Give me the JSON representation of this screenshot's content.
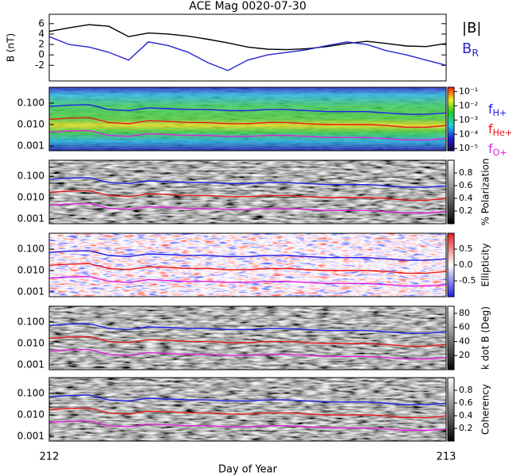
{
  "chart_data": {
    "type": "multi-panel",
    "title": "ACE Mag 0020-07-30",
    "x_label": "Day of Year",
    "xlim": [
      212,
      213
    ],
    "xticks": [
      212,
      213
    ],
    "x": [
      212,
      212.05,
      212.1,
      212.15,
      212.2,
      212.25,
      212.3,
      212.35,
      212.4,
      212.45,
      212.5,
      212.55,
      212.6,
      212.65,
      212.7,
      212.75,
      212.8,
      212.85,
      212.9,
      212.95,
      213
    ],
    "panels": [
      {
        "type": "line",
        "y_label": "B (nT)",
        "ylim": [
          -5,
          7.8
        ],
        "yticks": [
          -2,
          0,
          2,
          4,
          6
        ],
        "series": [
          {
            "name": "|B|",
            "color": "#000000",
            "values": [
              4.5,
              5.2,
              5.8,
              5.5,
              3.5,
              4.2,
              4.0,
              3.6,
              3.0,
              2.3,
              1.5,
              1.1,
              1.0,
              1.2,
              1.6,
              2.2,
              2.6,
              2.2,
              1.7,
              1.6,
              2.2
            ]
          },
          {
            "name": "B",
            "name_sub": "R",
            "color": "#2626d0",
            "values": [
              3.5,
              2.0,
              1.5,
              0.5,
              -1.0,
              2.5,
              1.8,
              0.5,
              -1.5,
              -3.0,
              -1.0,
              0.0,
              0.5,
              1.0,
              1.8,
              2.5,
              2.0,
              0.8,
              0.0,
              -1.0,
              -2.0
            ]
          }
        ]
      },
      {
        "type": "spectrogram",
        "colormap": "rainbow",
        "clog": true,
        "clim": [
          7e-06,
          0.2
        ],
        "cticks": [
          {
            "value": 0.1,
            "label": "10⁻¹"
          },
          {
            "value": 0.01,
            "label": "10⁻²"
          },
          {
            "value": 0.001,
            "label": "10⁻³"
          },
          {
            "value": 0.0001,
            "label": "10⁻⁴"
          },
          {
            "value": 1e-05,
            "label": "10⁻⁵"
          }
        ]
      },
      {
        "type": "spectrogram",
        "colormap": "gray",
        "c_label": "% Polarization",
        "clim": [
          0,
          1
        ],
        "cticks": [
          0.2,
          0.4,
          0.6,
          0.8
        ]
      },
      {
        "type": "spectrogram",
        "colormap": "bwr",
        "c_label": "Ellipticity",
        "clim": [
          -1,
          1
        ],
        "cticks": [
          -0.5,
          {
            "value": 0,
            "label": "0.0"
          },
          0.5
        ]
      },
      {
        "type": "spectrogram",
        "colormap": "gray",
        "c_label": "k dot B (Deg)",
        "clim": [
          0,
          90
        ],
        "cticks": [
          20,
          40,
          60,
          80
        ]
      },
      {
        "type": "spectrogram",
        "colormap": "gray",
        "c_label": "Coherency",
        "clim": [
          0,
          1
        ],
        "cticks": [
          0.2,
          0.4,
          0.6,
          0.8
        ]
      }
    ],
    "frequency_axis": {
      "log": true,
      "ylim": [
        0.0006,
        0.55
      ],
      "yticks": [
        {
          "value": 0.001,
          "label": "0.001"
        },
        {
          "value": 0.01,
          "label": "0.010"
        },
        {
          "value": 0.1,
          "label": "0.100"
        }
      ]
    },
    "frequency_series": [
      {
        "name": "f",
        "name_sub": "H+",
        "color": "#2020e8",
        "values": [
          0.07,
          0.08,
          0.085,
          0.05,
          0.045,
          0.06,
          0.055,
          0.05,
          0.05,
          0.045,
          0.045,
          0.05,
          0.05,
          0.045,
          0.04,
          0.04,
          0.04,
          0.035,
          0.03,
          0.03,
          0.035
        ]
      },
      {
        "name": "f",
        "name_sub": "He+",
        "color": "#e81818",
        "values": [
          0.0175,
          0.02,
          0.021,
          0.0125,
          0.011,
          0.015,
          0.014,
          0.0125,
          0.0125,
          0.011,
          0.011,
          0.0125,
          0.0125,
          0.011,
          0.01,
          0.01,
          0.01,
          0.009,
          0.0075,
          0.0075,
          0.009
        ]
      },
      {
        "name": "f",
        "name_sub": "O+",
        "color": "#e020e0",
        "values": [
          0.0044,
          0.005,
          0.0053,
          0.0031,
          0.0028,
          0.0038,
          0.0034,
          0.0031,
          0.0031,
          0.0028,
          0.0028,
          0.0031,
          0.0031,
          0.0028,
          0.0025,
          0.0025,
          0.0025,
          0.0022,
          0.0019,
          0.0019,
          0.0022
        ]
      }
    ]
  }
}
